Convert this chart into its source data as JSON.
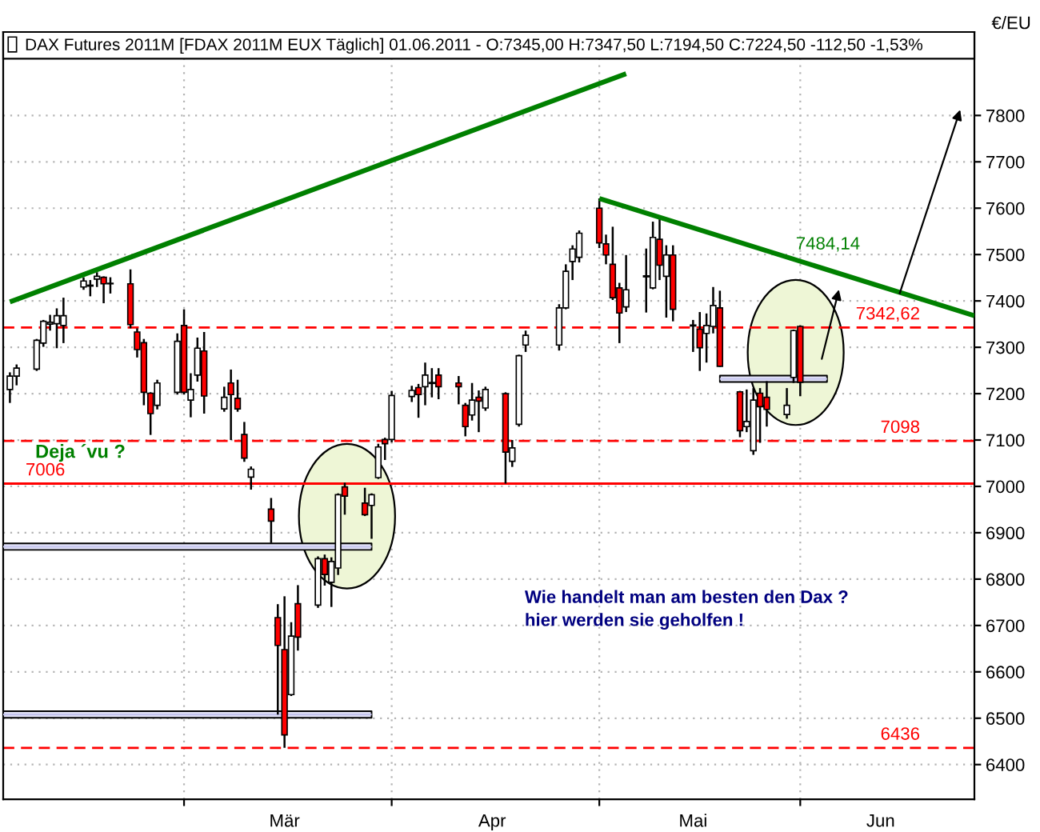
{
  "chart_data": {
    "type": "candlestick",
    "ylabel": "€/EU",
    "xlim": [
      "2011-02-02",
      "2011-06-27"
    ],
    "xticks": [
      {
        "value": "2011-03-01",
        "label": null
      },
      {
        "value": "2011-03-16",
        "label": "Mär"
      },
      {
        "value": "2011-04-01",
        "label": null
      },
      {
        "value": "2011-04-16",
        "label": "Apr"
      },
      {
        "value": "2011-05-02",
        "label": null
      },
      {
        "value": "2011-05-16",
        "label": "Mai"
      },
      {
        "value": "2011-06-01",
        "label": null
      },
      {
        "value": "2011-06-13",
        "label": "Jun"
      }
    ],
    "ylim": [
      6325,
      7980
    ],
    "yticks": [
      6400,
      6500,
      6600,
      6700,
      6800,
      6900,
      7000,
      7100,
      7200,
      7300,
      7400,
      7500,
      7600,
      7700,
      7800
    ],
    "grid": true,
    "legend": "top",
    "series": [
      {
        "name": "DAX Futures 2011M [FDAX 2011M EUX Täglich] 01.06.2011 - O:7345,00 H:7347,50 L:7194,50 C:7224,50 -112,50 -1,53%",
        "x": [
          "2011-02-03",
          "2011-02-04",
          "2011-02-07",
          "2011-02-08",
          "2011-02-09",
          "2011-02-10",
          "2011-02-11",
          "2011-02-14",
          "2011-02-15",
          "2011-02-16",
          "2011-02-17",
          "2011-02-18",
          "2011-02-21",
          "2011-02-22",
          "2011-02-23",
          "2011-02-24",
          "2011-02-25",
          "2011-02-28",
          "2011-03-01",
          "2011-03-02",
          "2011-03-03",
          "2011-03-04",
          "2011-03-07",
          "2011-03-08",
          "2011-03-09",
          "2011-03-10",
          "2011-03-11",
          "2011-03-14",
          "2011-03-15",
          "2011-03-16",
          "2011-03-17",
          "2011-03-18",
          "2011-03-21",
          "2011-03-22",
          "2011-03-23",
          "2011-03-24",
          "2011-03-25",
          "2011-03-28",
          "2011-03-29",
          "2011-03-30",
          "2011-03-31",
          "2011-04-01",
          "2011-04-04",
          "2011-04-05",
          "2011-04-06",
          "2011-04-07",
          "2011-04-08",
          "2011-04-11",
          "2011-04-12",
          "2011-04-13",
          "2011-04-14",
          "2011-04-15",
          "2011-04-18",
          "2011-04-19",
          "2011-04-20",
          "2011-04-21",
          "2011-04-26",
          "2011-04-27",
          "2011-04-28",
          "2011-04-29",
          "2011-05-02",
          "2011-05-03",
          "2011-05-04",
          "2011-05-05",
          "2011-05-06",
          "2011-05-09",
          "2011-05-10",
          "2011-05-11",
          "2011-05-12",
          "2011-05-13",
          "2011-05-16",
          "2011-05-17",
          "2011-05-18",
          "2011-05-19",
          "2011-05-20",
          "2011-05-23",
          "2011-05-24",
          "2011-05-25",
          "2011-05-26",
          "2011-05-27",
          "2011-05-30",
          "2011-05-31",
          "2011-06-01"
        ],
        "ohlc": [
          [
            7209,
            7246,
            7180,
            7238
          ],
          [
            7238,
            7263,
            7218,
            7255
          ],
          [
            7253,
            7318,
            7249,
            7315
          ],
          [
            7309,
            7359,
            7301,
            7356
          ],
          [
            7350,
            7370,
            7336,
            7354
          ],
          [
            7351,
            7384,
            7298,
            7368
          ],
          [
            7347,
            7407,
            7309,
            7368
          ],
          [
            7430,
            7451,
            7424,
            7443
          ],
          [
            7434,
            7445,
            7410,
            7432
          ],
          [
            7447,
            7462,
            7430,
            7453
          ],
          [
            7451,
            7453,
            7395,
            7437
          ],
          [
            7438,
            7451,
            7416,
            7437
          ],
          [
            7437,
            7468,
            7341,
            7349
          ],
          [
            7333,
            7341,
            7278,
            7295
          ],
          [
            7310,
            7318,
            7175,
            7203
          ],
          [
            7201,
            7203,
            7111,
            7157
          ],
          [
            7175,
            7230,
            7166,
            7223
          ],
          [
            7203,
            7330,
            7198,
            7313
          ],
          [
            7347,
            7382,
            7198,
            7203
          ],
          [
            7186,
            7244,
            7149,
            7209
          ],
          [
            7240,
            7321,
            7226,
            7298
          ],
          [
            7292,
            7333,
            7157,
            7195
          ],
          [
            7167,
            7215,
            7161,
            7192
          ],
          [
            7223,
            7252,
            7100,
            7198
          ],
          [
            7190,
            7230,
            7161,
            7167
          ],
          [
            7112,
            7139,
            7053,
            7061
          ],
          [
            7020,
            7043,
            6993,
            7037
          ],
          [
            6951,
            6975,
            6878,
            6925
          ],
          [
            6717,
            6746,
            6508,
            6657
          ],
          [
            6648,
            6763,
            6436,
            6464
          ],
          [
            6551,
            6707,
            6548,
            6677
          ],
          [
            6747,
            6787,
            6646,
            6675
          ],
          [
            6744,
            6849,
            6738,
            6844
          ],
          [
            6844,
            6853,
            6786,
            6810
          ],
          [
            6793,
            6847,
            6740,
            6838
          ],
          [
            6824,
            6985,
            6809,
            6982
          ],
          [
            6999,
            7008,
            6939,
            6979
          ],
          [
            6964,
            6997,
            6936,
            6939
          ],
          [
            6959,
            6985,
            6887,
            6982
          ],
          [
            7019,
            7092,
            7016,
            7085
          ],
          [
            7101,
            7105,
            7057,
            7092
          ],
          [
            7101,
            7206,
            7095,
            7196
          ],
          [
            7194,
            7217,
            7182,
            7207
          ],
          [
            7213,
            7221,
            7148,
            7198
          ],
          [
            7215,
            7267,
            7175,
            7240
          ],
          [
            7224,
            7255,
            7192,
            7222
          ],
          [
            7240,
            7255,
            7188,
            7215
          ],
          [
            7223,
            7238,
            7177,
            7215
          ],
          [
            7175,
            7180,
            7108,
            7129
          ],
          [
            7154,
            7223,
            7142,
            7186
          ],
          [
            7192,
            7207,
            7117,
            7184
          ],
          [
            7169,
            7215,
            7163,
            7209
          ],
          [
            7200,
            7203,
            7006,
            7074
          ],
          [
            7054,
            7100,
            7042,
            7083
          ],
          [
            7134,
            7284,
            7129,
            7282
          ],
          [
            7305,
            7336,
            7290,
            7326
          ],
          [
            7305,
            7393,
            7293,
            7385
          ],
          [
            7385,
            7479,
            7382,
            7464
          ],
          [
            7485,
            7520,
            7445,
            7512
          ],
          [
            7494,
            7552,
            7483,
            7546
          ],
          [
            7600,
            7621,
            7514,
            7525
          ],
          [
            7523,
            7543,
            7479,
            7499
          ],
          [
            7479,
            7560,
            7402,
            7407
          ],
          [
            7428,
            7439,
            7309,
            7374
          ],
          [
            7387,
            7499,
            7376,
            7424
          ],
          [
            7452,
            7513,
            7375,
            7454
          ],
          [
            7428,
            7571,
            7425,
            7537
          ],
          [
            7533,
            7579,
            7445,
            7477
          ],
          [
            7453,
            7520,
            7364,
            7499
          ],
          [
            7499,
            7520,
            7356,
            7382
          ],
          [
            7348,
            7359,
            7290,
            7346
          ],
          [
            7339,
            7376,
            7249,
            7299
          ],
          [
            7330,
            7373,
            7267,
            7347
          ],
          [
            7345,
            7430,
            7330,
            7390
          ],
          [
            7385,
            7422,
            7258,
            7259
          ],
          [
            7204,
            7206,
            7106,
            7120
          ],
          [
            7129,
            7209,
            7117,
            7140
          ],
          [
            7077,
            7212,
            7068,
            7186
          ],
          [
            7201,
            7212,
            7094,
            7172
          ],
          [
            7192,
            7227,
            7129,
            7166
          ],
          [
            7155,
            7212,
            7146,
            7175
          ],
          [
            7235,
            7338,
            7223,
            7336
          ],
          [
            7345,
            7347.5,
            7194.5,
            7224.5
          ]
        ],
        "colors": [
          "#ffffff",
          "#ffffff",
          "#ffffff",
          "#ffffff",
          "#ffffff",
          "#ffffff",
          "#ffffff",
          "#ffffff",
          "#ff0000",
          "#ffffff",
          "#ff0000",
          "#ff0000",
          "#ff0000",
          "#ff0000",
          "#ff0000",
          "#ff0000",
          "#ffffff",
          "#ffffff",
          "#ff0000",
          "#ffffff",
          "#ffffff",
          "#ff0000",
          "#ffffff",
          "#ff0000",
          "#ff0000",
          "#ff0000",
          "#ffffff",
          "#ff0000",
          "#ff0000",
          "#ff0000",
          "#ffffff",
          "#ff0000",
          "#ffffff",
          "#ff0000",
          "#ffffff",
          "#ffffff",
          "#ff0000",
          "#ff0000",
          "#ffffff",
          "#ffffff",
          "#ff0000",
          "#ffffff",
          "#ffffff",
          "#ff0000",
          "#ffffff",
          "#ff0000",
          "#ff0000",
          "#ff0000",
          "#ff0000",
          "#ffffff",
          "#ff0000",
          "#ffffff",
          "#ff0000",
          "#ffffff",
          "#ffffff",
          "#ffffff",
          "#ffffff",
          "#ffffff",
          "#ffffff",
          "#ffffff",
          "#ff0000",
          "#ff0000",
          "#ff0000",
          "#ff0000",
          "#ffffff",
          "#ffffff",
          "#ffffff",
          "#ff0000",
          "#ffffff",
          "#ff0000",
          "#ff0000",
          "#ff0000",
          "#ffffff",
          "#ffffff",
          "#ff0000",
          "#ff0000",
          "#ffffff",
          "#ffffff",
          "#ff0000",
          "#ff0000",
          "#ffffff",
          "#ffffff",
          "#ff0000"
        ]
      },
      {
        "type": "line",
        "x": [
          "2011-02-03",
          "2011-05-06"
        ],
        "values": [
          7398,
          7890
        ],
        "color": "#008000"
      },
      {
        "type": "line",
        "x": [
          "2011-05-02",
          "2011-06-27"
        ],
        "values": [
          7621,
          7368
        ],
        "color": "#008000"
      },
      {
        "type": "line",
        "x": [
          "2011-02-02",
          "2011-03-29"
        ],
        "values": [
          6870,
          6870
        ],
        "lower": [
          6863,
          6863
        ],
        "upper": [
          6877,
          6877
        ],
        "color": "#c8c8f0"
      },
      {
        "type": "line",
        "x": [
          "2011-02-02",
          "2011-03-29"
        ],
        "values": [
          6508,
          6508
        ],
        "lower": [
          6501,
          6501
        ],
        "upper": [
          6515,
          6515
        ],
        "color": "#c4c4ee"
      },
      {
        "type": "line",
        "x": [
          "2011-05-20",
          "2011-06-05"
        ],
        "values": [
          7232,
          7232
        ],
        "lower": [
          7225,
          7225
        ],
        "upper": [
          7239,
          7239
        ],
        "color": "#c8c8f0"
      }
    ],
    "ref_lines": [
      {
        "axis": "y",
        "value": 7342.62,
        "label": "7342,62",
        "color": "#ff0000",
        "line_style": "dashed"
      },
      {
        "axis": "y",
        "value": 7098,
        "label": "7098",
        "color": "#ff0000",
        "line_style": "dashed"
      },
      {
        "axis": "y",
        "value": 7006,
        "label": "7006",
        "color": "#ff0000",
        "line_style": "solid"
      },
      {
        "axis": "y",
        "value": 6436,
        "label": "6436",
        "color": "#ff0000",
        "line_style": "dashed"
      }
    ],
    "annotations": [
      {
        "text": "7484,14",
        "x": "2011-06-01",
        "y": 7484.14
      },
      "Deja ´vu ?",
      "Wie handelt man am besten den Dax ?",
      "hier werden sie geholfen !"
    ]
  }
}
